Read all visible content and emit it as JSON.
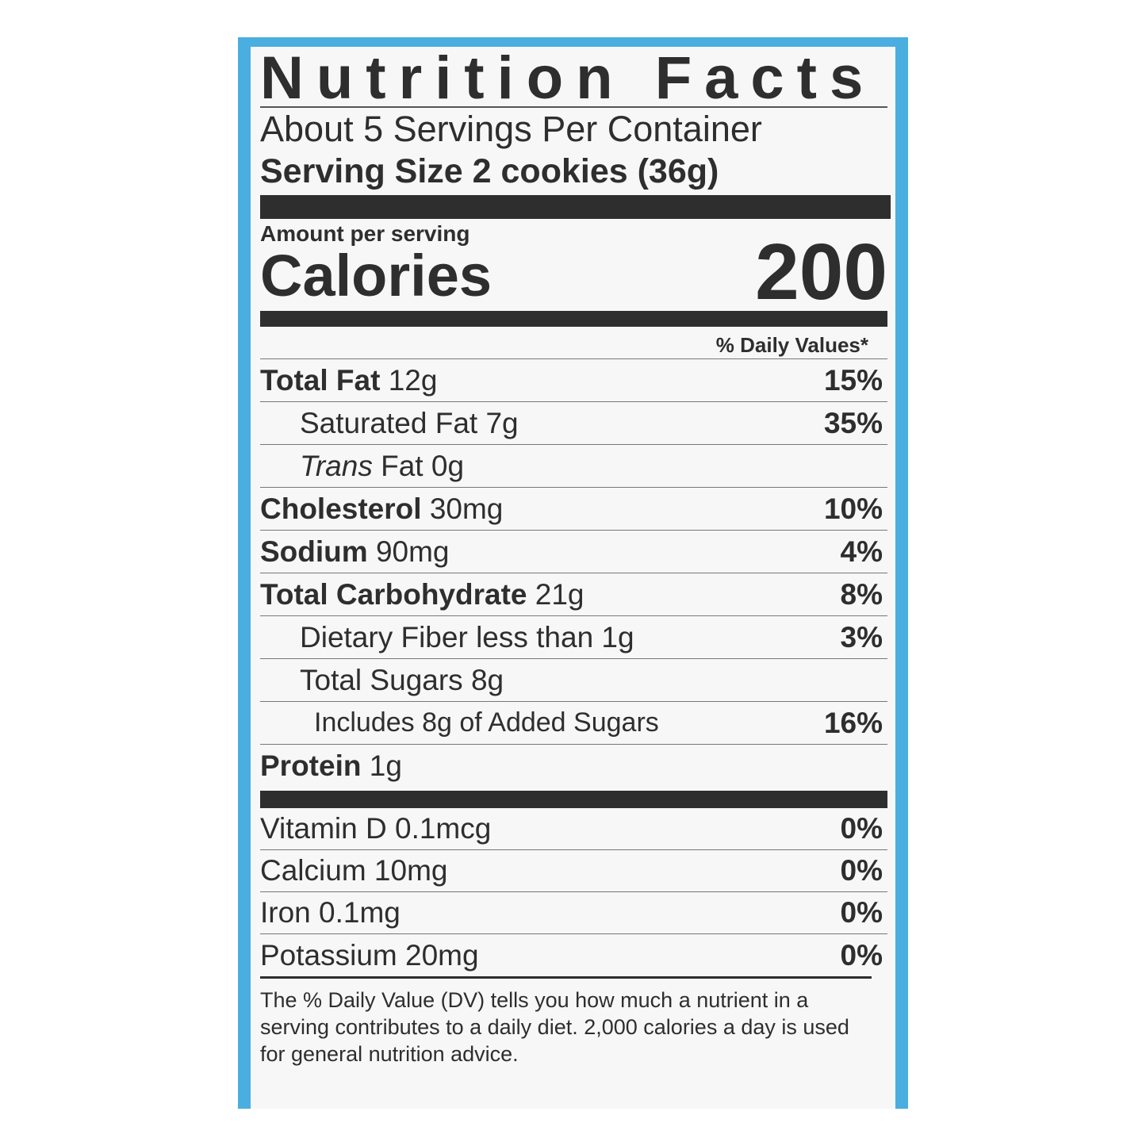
{
  "colors": {
    "border": "#4aaee0",
    "text": "#2e2e2e"
  },
  "title": "Nutrition Facts",
  "servings_per_container": "About 5 Servings Per Container",
  "serving_size": "Serving Size 2 cookies (36g)",
  "amount_per_serving": "Amount per serving",
  "calories_label": "Calories",
  "calories_value": "200",
  "daily_values_header": "% Daily Values*",
  "nutrients": [
    {
      "name": "Total Fat",
      "amount": "12g",
      "dv": "15%"
    },
    {
      "name": "Saturated Fat",
      "amount": "7g",
      "dv": "35%"
    },
    {
      "name": "Trans",
      "amount": "Fat 0g",
      "dv": ""
    },
    {
      "name": "Cholesterol",
      "amount": "30mg",
      "dv": "10%"
    },
    {
      "name": "Sodium",
      "amount": "90mg",
      "dv": "4%"
    },
    {
      "name": "Total Carbohydrate",
      "amount": "21g",
      "dv": "8%"
    },
    {
      "name": "Dietary Fiber",
      "amount": "less than 1g",
      "dv": "3%"
    },
    {
      "name": "Total Sugars",
      "amount": "8g",
      "dv": ""
    },
    {
      "name": "Includes 8g of Added Sugars",
      "amount": "",
      "dv": "16%"
    },
    {
      "name": "Protein",
      "amount": "1g",
      "dv": ""
    }
  ],
  "vitamins": [
    {
      "label": "Vitamin D 0.1mcg",
      "dv": "0%"
    },
    {
      "label": "Calcium 10mg",
      "dv": "0%"
    },
    {
      "label": "Iron 0.1mg",
      "dv": "0%"
    },
    {
      "label": "Potassium 20mg",
      "dv": "0%"
    }
  ],
  "footnote": "The % Daily Value (DV) tells you how much a nutrient in a serving contributes to a daily diet. 2,000 calories a day is used for general nutrition advice."
}
